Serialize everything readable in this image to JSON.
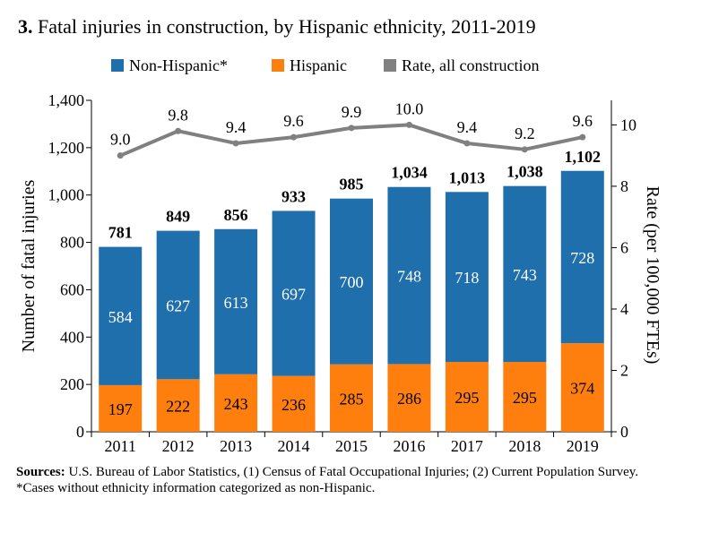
{
  "title_number": "3.",
  "title_text": "Fatal injuries in construction, by Hispanic ethnicity, 2011-2019",
  "chart_data": {
    "type": "bar",
    "stacked": true,
    "title": "Fatal injuries in construction, by Hispanic ethnicity, 2011-2019",
    "categories": [
      "2011",
      "2012",
      "2013",
      "2014",
      "2015",
      "2016",
      "2017",
      "2018",
      "2019"
    ],
    "series": [
      {
        "name": "Hispanic",
        "color": "#ff7f0e",
        "axis": "left",
        "values": [
          197,
          222,
          243,
          236,
          285,
          286,
          295,
          295,
          374
        ]
      },
      {
        "name": "Non-Hispanic*",
        "color": "#1f6fad",
        "axis": "left",
        "values": [
          584,
          627,
          613,
          697,
          700,
          748,
          718,
          743,
          728
        ]
      },
      {
        "name": "Rate, all construction",
        "color": "#808080",
        "axis": "right",
        "kind": "line",
        "values": [
          9.0,
          9.8,
          9.4,
          9.6,
          9.9,
          10.0,
          9.4,
          9.2,
          9.6
        ]
      }
    ],
    "totals": [
      "781",
      "849",
      "856",
      "933",
      "985",
      "1,034",
      "1,013",
      "1,038",
      "1,102"
    ],
    "bar_value_labels": {
      "non_hispanic": [
        "584",
        "627",
        "613",
        "697",
        "700",
        "748",
        "718",
        "743",
        "728"
      ],
      "hispanic": [
        "197",
        "222",
        "243",
        "236",
        "285",
        "286",
        "295",
        "295",
        "374"
      ]
    },
    "rate_labels": [
      "9.0",
      "9.8",
      "9.4",
      "9.6",
      "9.9",
      "10.0",
      "9.4",
      "9.2",
      "9.6"
    ],
    "legend": [
      "Non-Hispanic*",
      "Hispanic",
      "Rate, all construction"
    ],
    "legend_placement": "top",
    "ylabel": "Number of fatal injuries",
    "ylabel_right": "Rate (per 100,000 FTEs)",
    "ylim": [
      0,
      1400
    ],
    "ylim_right": [
      0,
      10.8
    ],
    "yticks": [
      0,
      200,
      400,
      600,
      800,
      1000,
      1200,
      1400
    ],
    "yticks_labels": [
      "0",
      "200",
      "400",
      "600",
      "800",
      "1,000",
      "1,200",
      "1,400"
    ],
    "yticks_right": [
      0,
      2,
      4,
      6,
      8,
      10
    ],
    "yticks_right_labels": [
      "0",
      "2",
      "4",
      "6",
      "8",
      "10"
    ],
    "grid": false
  },
  "sources_label": "Sources:",
  "sources_text": "U.S. Bureau of Labor Statistics, (1) Census of Fatal Occupational Injuries; (2) Current Population Survey.",
  "footnote": "*Cases without ethnicity information categorized as non-Hispanic."
}
